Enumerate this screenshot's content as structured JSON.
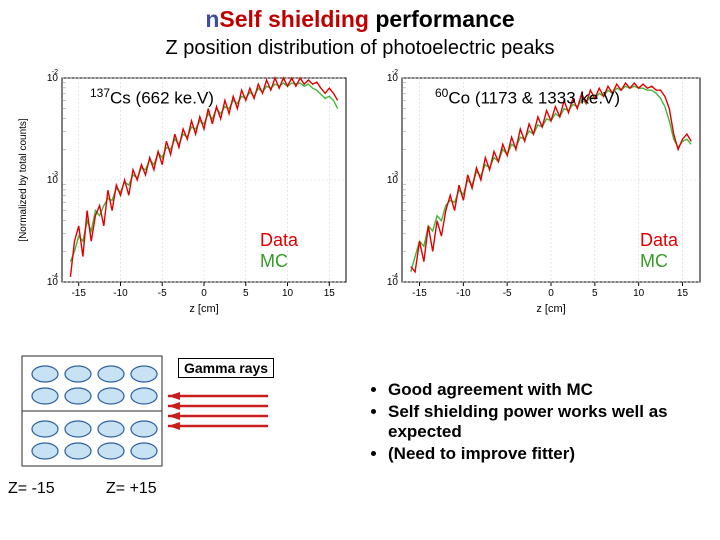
{
  "title": {
    "bullet": "n",
    "part1": "Self shielding",
    "part2": "performance"
  },
  "subtitle": "Z position distribution of photoelectric peaks",
  "charts": {
    "left": {
      "isotope_super": "137",
      "isotope_sym": "Cs",
      "energy": "(662 ke.V)",
      "xlabel": "z [cm]",
      "ylabel": "[Normalized by total counts]",
      "xlim": [
        -17,
        17
      ],
      "xtick_step": 5,
      "ylim_exp": [
        -4,
        -2
      ],
      "curve_color_data": "#e00000",
      "curve_color_mc": "#40b83a",
      "grid_color": "#cccccc",
      "data_pts": [
        [
          -16,
          -3.95
        ],
        [
          -15.5,
          -3.6
        ],
        [
          -15,
          -3.45
        ],
        [
          -14.5,
          -3.75
        ],
        [
          -14,
          -3.3
        ],
        [
          -13.5,
          -3.6
        ],
        [
          -13,
          -3.35
        ],
        [
          -12.5,
          -3.25
        ],
        [
          -12,
          -3.45
        ],
        [
          -11.5,
          -3.1
        ],
        [
          -11,
          -3.3
        ],
        [
          -10.5,
          -3.05
        ],
        [
          -10,
          -3.15
        ],
        [
          -9.5,
          -3.0
        ],
        [
          -9,
          -3.15
        ],
        [
          -8.5,
          -2.9
        ],
        [
          -8,
          -3.0
        ],
        [
          -7.5,
          -2.85
        ],
        [
          -7,
          -2.95
        ],
        [
          -6.5,
          -2.78
        ],
        [
          -6,
          -2.9
        ],
        [
          -5.5,
          -2.72
        ],
        [
          -5,
          -2.85
        ],
        [
          -4.5,
          -2.62
        ],
        [
          -4,
          -2.75
        ],
        [
          -3.5,
          -2.55
        ],
        [
          -3,
          -2.68
        ],
        [
          -2.5,
          -2.5
        ],
        [
          -2,
          -2.6
        ],
        [
          -1.5,
          -2.42
        ],
        [
          -1,
          -2.55
        ],
        [
          -0.5,
          -2.38
        ],
        [
          0,
          -2.5
        ],
        [
          0.5,
          -2.3
        ],
        [
          1,
          -2.45
        ],
        [
          1.5,
          -2.28
        ],
        [
          2,
          -2.4
        ],
        [
          2.5,
          -2.22
        ],
        [
          3,
          -2.35
        ],
        [
          3.5,
          -2.18
        ],
        [
          4,
          -2.3
        ],
        [
          4.5,
          -2.12
        ],
        [
          5,
          -2.22
        ],
        [
          5.5,
          -2.1
        ],
        [
          6,
          -2.2
        ],
        [
          6.5,
          -2.06
        ],
        [
          7,
          -2.15
        ],
        [
          7.5,
          -2.02
        ],
        [
          8,
          -2.12
        ],
        [
          8.5,
          -2.0
        ],
        [
          9,
          -2.1
        ],
        [
          9.5,
          -2.0
        ],
        [
          10,
          -2.08
        ],
        [
          10.5,
          -2.0
        ],
        [
          11,
          -2.08
        ],
        [
          11.5,
          -2.0
        ],
        [
          12,
          -2.06
        ],
        [
          12.5,
          -2.02
        ],
        [
          13,
          -2.06
        ],
        [
          13.5,
          -2.04
        ],
        [
          14,
          -2.1
        ],
        [
          14.5,
          -2.15
        ],
        [
          15,
          -2.1
        ],
        [
          15.5,
          -2.15
        ],
        [
          16,
          -2.22
        ]
      ],
      "mc_pts": [
        [
          -16,
          -3.8
        ],
        [
          -15.5,
          -3.7
        ],
        [
          -15,
          -3.55
        ],
        [
          -14.5,
          -3.6
        ],
        [
          -14,
          -3.4
        ],
        [
          -13.5,
          -3.5
        ],
        [
          -13,
          -3.3
        ],
        [
          -12.5,
          -3.35
        ],
        [
          -12,
          -3.25
        ],
        [
          -11.5,
          -3.18
        ],
        [
          -11,
          -3.2
        ],
        [
          -10.5,
          -3.08
        ],
        [
          -10,
          -3.12
        ],
        [
          -9.5,
          -3.02
        ],
        [
          -9,
          -3.05
        ],
        [
          -8.5,
          -2.95
        ],
        [
          -8,
          -2.98
        ],
        [
          -7.5,
          -2.88
        ],
        [
          -7,
          -2.9
        ],
        [
          -6.5,
          -2.8
        ],
        [
          -6,
          -2.85
        ],
        [
          -5.5,
          -2.73
        ],
        [
          -5,
          -2.78
        ],
        [
          -4.5,
          -2.68
        ],
        [
          -4,
          -2.7
        ],
        [
          -3.5,
          -2.6
        ],
        [
          -3,
          -2.65
        ],
        [
          -2.5,
          -2.55
        ],
        [
          -2,
          -2.58
        ],
        [
          -1.5,
          -2.48
        ],
        [
          -1,
          -2.5
        ],
        [
          -0.5,
          -2.42
        ],
        [
          0,
          -2.45
        ],
        [
          0.5,
          -2.35
        ],
        [
          1,
          -2.4
        ],
        [
          1.5,
          -2.3
        ],
        [
          2,
          -2.35
        ],
        [
          2.5,
          -2.28
        ],
        [
          3,
          -2.3
        ],
        [
          3.5,
          -2.22
        ],
        [
          4,
          -2.25
        ],
        [
          4.5,
          -2.18
        ],
        [
          5,
          -2.2
        ],
        [
          5.5,
          -2.14
        ],
        [
          6,
          -2.18
        ],
        [
          6.5,
          -2.1
        ],
        [
          7,
          -2.14
        ],
        [
          7.5,
          -2.08
        ],
        [
          8,
          -2.1
        ],
        [
          8.5,
          -2.06
        ],
        [
          9,
          -2.08
        ],
        [
          9.5,
          -2.05
        ],
        [
          10,
          -2.08
        ],
        [
          10.5,
          -2.05
        ],
        [
          11,
          -2.06
        ],
        [
          11.5,
          -2.05
        ],
        [
          12,
          -2.08
        ],
        [
          12.5,
          -2.06
        ],
        [
          13,
          -2.1
        ],
        [
          13.5,
          -2.12
        ],
        [
          14,
          -2.16
        ],
        [
          14.5,
          -2.2
        ],
        [
          15,
          -2.18
        ],
        [
          15.5,
          -2.22
        ],
        [
          16,
          -2.3
        ]
      ],
      "legend": {
        "data": "Data",
        "mc": "MC"
      }
    },
    "right": {
      "isotope_super": "60",
      "isotope_sym": "Co",
      "energy": "(1173 & 1333 ke.V)",
      "xlabel": "z [cm]",
      "xlim": [
        -17,
        17
      ],
      "xtick_step": 5,
      "ylim_exp": [
        -4,
        -2
      ],
      "curve_color_data": "#e00000",
      "curve_color_mc": "#40b83a",
      "grid_color": "#cccccc",
      "data_pts": [
        [
          -16,
          -3.85
        ],
        [
          -15.5,
          -3.9
        ],
        [
          -15,
          -3.6
        ],
        [
          -14.5,
          -3.8
        ],
        [
          -14,
          -3.45
        ],
        [
          -13.5,
          -3.7
        ],
        [
          -13,
          -3.4
        ],
        [
          -12.5,
          -3.55
        ],
        [
          -12,
          -3.3
        ],
        [
          -11.5,
          -3.15
        ],
        [
          -11,
          -3.3
        ],
        [
          -10.5,
          -3.05
        ],
        [
          -10,
          -3.2
        ],
        [
          -9.5,
          -2.95
        ],
        [
          -9,
          -3.08
        ],
        [
          -8.5,
          -2.88
        ],
        [
          -8,
          -3.0
        ],
        [
          -7.5,
          -2.78
        ],
        [
          -7,
          -2.9
        ],
        [
          -6.5,
          -2.72
        ],
        [
          -6,
          -2.82
        ],
        [
          -5.5,
          -2.65
        ],
        [
          -5,
          -2.76
        ],
        [
          -4.5,
          -2.58
        ],
        [
          -4,
          -2.7
        ],
        [
          -3.5,
          -2.5
        ],
        [
          -3,
          -2.62
        ],
        [
          -2.5,
          -2.45
        ],
        [
          -2,
          -2.55
        ],
        [
          -1.5,
          -2.38
        ],
        [
          -1,
          -2.48
        ],
        [
          -0.5,
          -2.32
        ],
        [
          0,
          -2.42
        ],
        [
          0.5,
          -2.28
        ],
        [
          1,
          -2.38
        ],
        [
          1.5,
          -2.22
        ],
        [
          2,
          -2.34
        ],
        [
          2.5,
          -2.2
        ],
        [
          3,
          -2.3
        ],
        [
          3.5,
          -2.15
        ],
        [
          4,
          -2.25
        ],
        [
          4.5,
          -2.12
        ],
        [
          5,
          -2.2
        ],
        [
          5.5,
          -2.1
        ],
        [
          6,
          -2.18
        ],
        [
          6.5,
          -2.08
        ],
        [
          7,
          -2.15
        ],
        [
          7.5,
          -2.06
        ],
        [
          8,
          -2.12
        ],
        [
          8.5,
          -2.05
        ],
        [
          9,
          -2.1
        ],
        [
          9.5,
          -2.05
        ],
        [
          10,
          -2.1
        ],
        [
          10.5,
          -2.06
        ],
        [
          11,
          -2.1
        ],
        [
          11.5,
          -2.08
        ],
        [
          12,
          -2.12
        ],
        [
          12.5,
          -2.12
        ],
        [
          13,
          -2.18
        ],
        [
          13.5,
          -2.3
        ],
        [
          14,
          -2.55
        ],
        [
          14.5,
          -2.7
        ],
        [
          15,
          -2.6
        ],
        [
          15.5,
          -2.55
        ],
        [
          16,
          -2.62
        ]
      ],
      "mc_pts": [
        [
          -16,
          -3.9
        ],
        [
          -15.5,
          -3.75
        ],
        [
          -15,
          -3.6
        ],
        [
          -14.5,
          -3.65
        ],
        [
          -14,
          -3.45
        ],
        [
          -13.5,
          -3.5
        ],
        [
          -13,
          -3.35
        ],
        [
          -12.5,
          -3.4
        ],
        [
          -12,
          -3.25
        ],
        [
          -11.5,
          -3.2
        ],
        [
          -11,
          -3.22
        ],
        [
          -10.5,
          -3.1
        ],
        [
          -10,
          -3.14
        ],
        [
          -9.5,
          -3.0
        ],
        [
          -9,
          -3.05
        ],
        [
          -8.5,
          -2.92
        ],
        [
          -8,
          -2.96
        ],
        [
          -7.5,
          -2.85
        ],
        [
          -7,
          -2.88
        ],
        [
          -6.5,
          -2.78
        ],
        [
          -6,
          -2.82
        ],
        [
          -5.5,
          -2.7
        ],
        [
          -5,
          -2.75
        ],
        [
          -4.5,
          -2.65
        ],
        [
          -4,
          -2.68
        ],
        [
          -3.5,
          -2.58
        ],
        [
          -3,
          -2.6
        ],
        [
          -2.5,
          -2.52
        ],
        [
          -2,
          -2.55
        ],
        [
          -1.5,
          -2.46
        ],
        [
          -1,
          -2.48
        ],
        [
          -0.5,
          -2.4
        ],
        [
          0,
          -2.42
        ],
        [
          0.5,
          -2.35
        ],
        [
          1,
          -2.38
        ],
        [
          1.5,
          -2.3
        ],
        [
          2,
          -2.32
        ],
        [
          2.5,
          -2.26
        ],
        [
          3,
          -2.28
        ],
        [
          3.5,
          -2.22
        ],
        [
          4,
          -2.24
        ],
        [
          4.5,
          -2.18
        ],
        [
          5,
          -2.2
        ],
        [
          5.5,
          -2.15
        ],
        [
          6,
          -2.18
        ],
        [
          6.5,
          -2.12
        ],
        [
          7,
          -2.15
        ],
        [
          7.5,
          -2.1
        ],
        [
          8,
          -2.12
        ],
        [
          8.5,
          -2.08
        ],
        [
          9,
          -2.1
        ],
        [
          9.5,
          -2.08
        ],
        [
          10,
          -2.1
        ],
        [
          10.5,
          -2.1
        ],
        [
          11,
          -2.12
        ],
        [
          11.5,
          -2.12
        ],
        [
          12,
          -2.15
        ],
        [
          12.5,
          -2.2
        ],
        [
          13,
          -2.28
        ],
        [
          13.5,
          -2.42
        ],
        [
          14,
          -2.6
        ],
        [
          14.5,
          -2.68
        ],
        [
          15,
          -2.62
        ],
        [
          15.5,
          -2.6
        ],
        [
          16,
          -2.65
        ]
      ],
      "legend": {
        "data": "Data",
        "mc": "MC"
      }
    }
  },
  "diagram": {
    "gamma_label": "Gamma rays",
    "z_left": "Z= -15",
    "z_right": "Z= +15",
    "cylinder_fill": "#c7e3f3",
    "cylinder_stroke": "#2d5fa0",
    "arrow_color": "#c81e1e",
    "box_stroke": "#2a2a2a"
  },
  "bullets": [
    "Good agreement with MC",
    "Self shielding power works well as expected",
    "(Need to improve fitter)"
  ]
}
